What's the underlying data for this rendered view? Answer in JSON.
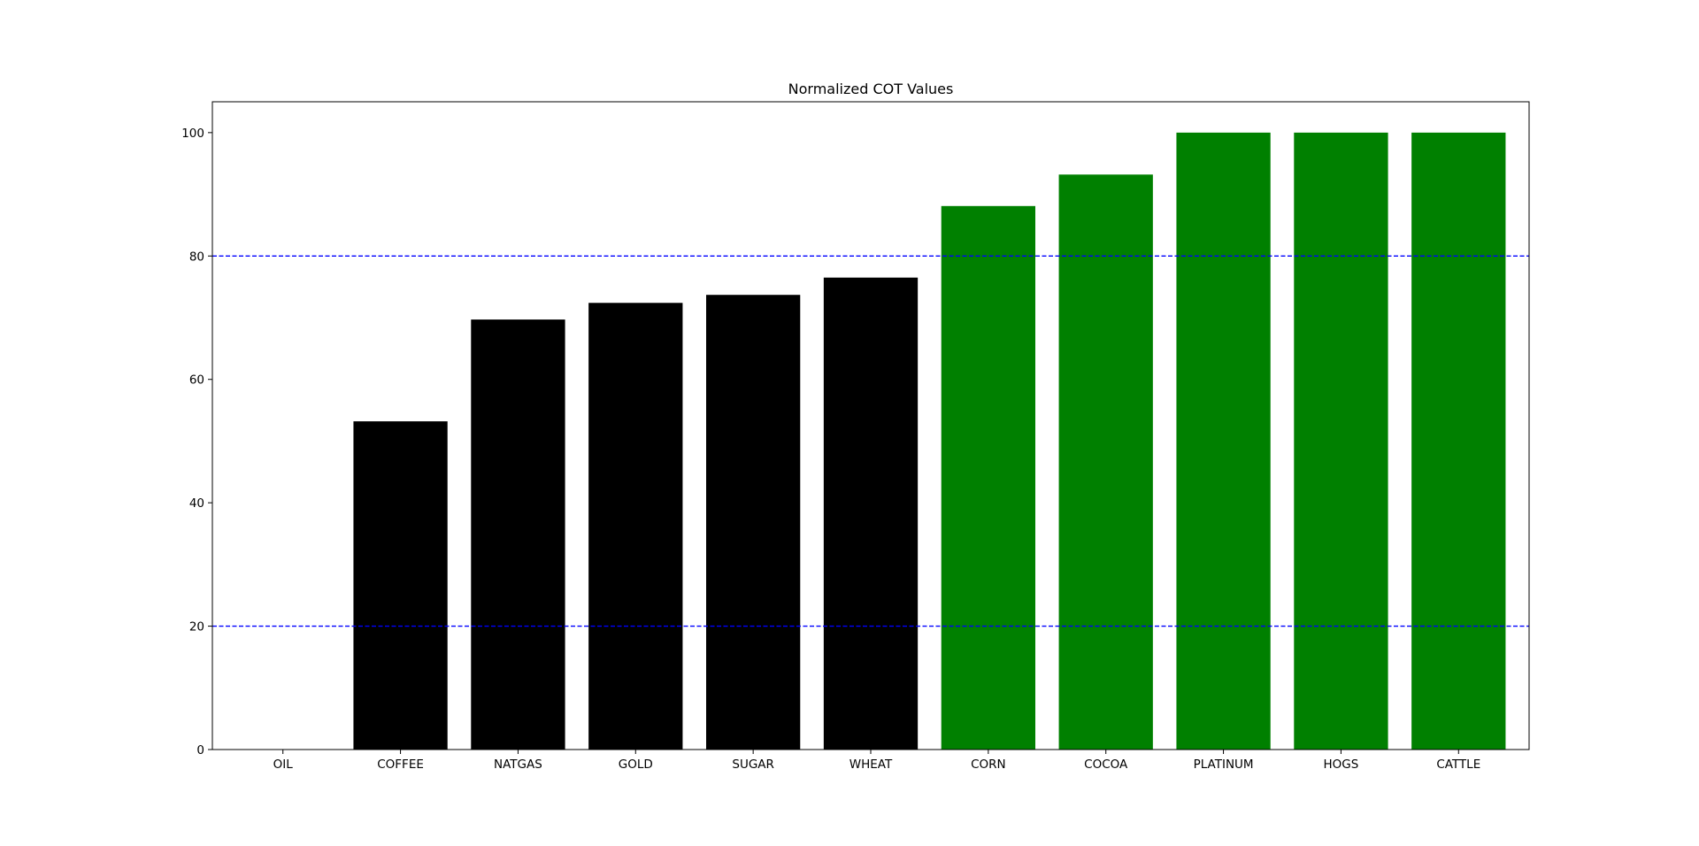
{
  "chart_data": {
    "type": "bar",
    "title": "Normalized COT Values",
    "xlabel": "",
    "ylabel": "",
    "categories": [
      "OIL",
      "COFFEE",
      "NATGAS",
      "GOLD",
      "SUGAR",
      "WHEAT",
      "CORN",
      "COCOA",
      "PLATINUM",
      "HOGS",
      "CATTLE"
    ],
    "values": [
      0,
      53.2,
      69.7,
      72.4,
      73.7,
      76.5,
      88.1,
      93.2,
      100,
      100,
      100
    ],
    "bar_colors": [
      "#000000",
      "#000000",
      "#000000",
      "#000000",
      "#000000",
      "#000000",
      "#008000",
      "#008000",
      "#008000",
      "#008000",
      "#008000"
    ],
    "ylim": [
      0,
      105
    ],
    "yticks": [
      0,
      20,
      40,
      60,
      80,
      100
    ],
    "reference_lines": [
      {
        "y": 80,
        "color": "#0000ff",
        "style": "dashed"
      },
      {
        "y": 20,
        "color": "#0000ff",
        "style": "dashed"
      }
    ],
    "grid": false,
    "legend": false
  }
}
